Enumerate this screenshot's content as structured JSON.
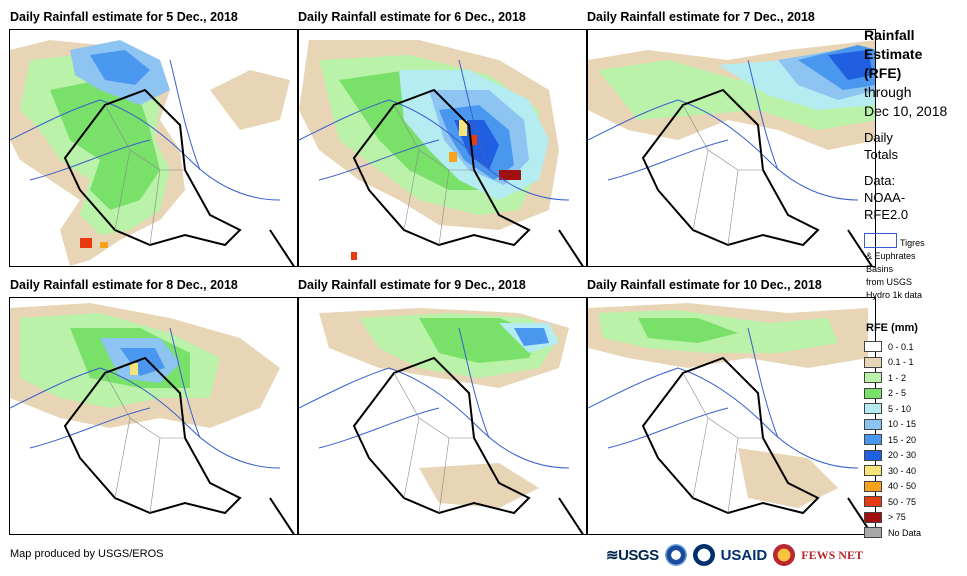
{
  "panels": [
    {
      "title": "Daily Rainfall estimate for 5 Dec., 2018"
    },
    {
      "title": "Daily Rainfall estimate for 6 Dec., 2018"
    },
    {
      "title": "Daily Rainfall estimate for 7 Dec., 2018"
    },
    {
      "title": "Daily Rainfall estimate for 8 Dec., 2018"
    },
    {
      "title": "Daily Rainfall estimate for 9 Dec., 2018"
    },
    {
      "title": "Daily Rainfall estimate for 10 Dec., 2018"
    }
  ],
  "sidebar": {
    "title_line1": "Rainfall",
    "title_line2": "Estimate",
    "title_line3": "(RFE)",
    "title_line4": "through",
    "title_line5": "Dec 10, 2018",
    "daily_line1": "Daily",
    "daily_line2": "Totals",
    "data_line1": "Data:",
    "data_line2": "NOAA-",
    "data_line3": "RFE2.0",
    "basin_line1": "Tigres",
    "basin_line2": "& Euphrates",
    "basin_line3": "Basins",
    "basin_line4": "from USGS",
    "basin_line5": "Hydro 1k data"
  },
  "legend": {
    "title": "RFE (mm)",
    "items": [
      {
        "label": "0 - 0.1",
        "color": "#ffffff"
      },
      {
        "label": "0.1 - 1",
        "color": "#e8d5b5"
      },
      {
        "label": "1 - 2",
        "color": "#b9f2a8"
      },
      {
        "label": "2 - 5",
        "color": "#79e06a"
      },
      {
        "label": "5 - 10",
        "color": "#b4ecf2"
      },
      {
        "label": "10 - 15",
        "color": "#8ec4f2"
      },
      {
        "label": "15 - 20",
        "color": "#4a97f0"
      },
      {
        "label": "20 - 30",
        "color": "#1f5fe0"
      },
      {
        "label": "30 - 40",
        "color": "#f8e27a"
      },
      {
        "label": "40 - 50",
        "color": "#f6a21a"
      },
      {
        "label": "50 - 75",
        "color": "#e83a10"
      },
      {
        "label": "> 75",
        "color": "#a01010"
      },
      {
        "label": "No Data",
        "color": "#a8a8a8"
      }
    ]
  },
  "footer": {
    "credit": "Map produced by USGS/EROS",
    "logo_usgs": "USGS",
    "logo_usaid": "USAID",
    "logo_fews": "FEWS NET"
  }
}
